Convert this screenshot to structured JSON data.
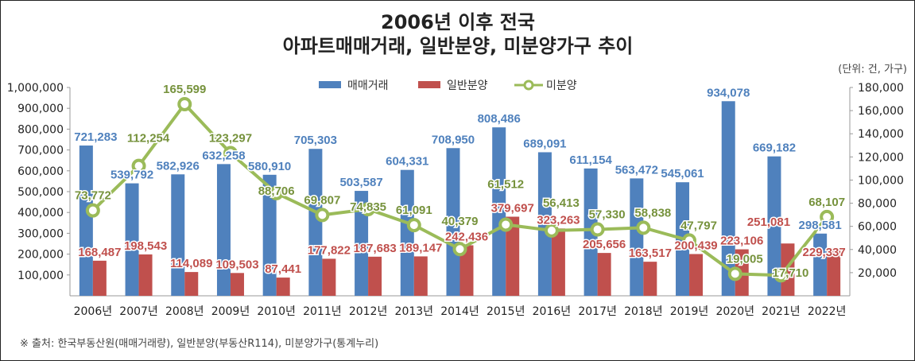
{
  "chart_data": {
    "type": "bar",
    "title": [
      "2006년 이후 전국",
      "아파트매매거래, 일반분양, 미분양가구 추이"
    ],
    "unit_note": "(단위: 건, 가구)",
    "categories": [
      "2006년",
      "2007년",
      "2008년",
      "2009년",
      "2010년",
      "2011년",
      "2012년",
      "2013년",
      "2014년",
      "2015년",
      "2016년",
      "2017년",
      "2018년",
      "2019년",
      "2020년",
      "2021년",
      "2022년"
    ],
    "left_axis": {
      "min": 0,
      "max": 1000000,
      "ticks": [
        100000,
        200000,
        300000,
        400000,
        500000,
        600000,
        700000,
        800000,
        900000,
        1000000
      ]
    },
    "right_axis": {
      "min": 0,
      "max": 180000,
      "ticks": [
        20000,
        40000,
        60000,
        80000,
        100000,
        120000,
        140000,
        160000,
        180000
      ]
    },
    "series": [
      {
        "name": "매매거래",
        "type": "bar",
        "axis": "left",
        "color": "#4f81bd",
        "label_color": "#4f81bd",
        "values": [
          721283,
          539792,
          582926,
          632258,
          580910,
          705303,
          503587,
          604331,
          708950,
          808486,
          689091,
          611154,
          563472,
          545061,
          934078,
          669182,
          298581
        ]
      },
      {
        "name": "일반분양",
        "type": "bar",
        "axis": "left",
        "color": "#c0504d",
        "label_color": "#c0504d",
        "values": [
          168487,
          198543,
          114089,
          109503,
          87441,
          177822,
          187683,
          189147,
          242436,
          379697,
          323263,
          205656,
          163517,
          200439,
          223106,
          251081,
          229337
        ]
      },
      {
        "name": "미분양",
        "type": "line",
        "axis": "right",
        "color": "#9bbb59",
        "label_color": "#76923c",
        "values": [
          73772,
          112254,
          165599,
          123297,
          88706,
          69807,
          74835,
          61091,
          40379,
          61512,
          56413,
          57330,
          58838,
          47797,
          19005,
          17710,
          68107
        ]
      }
    ],
    "legend": "top-center",
    "grid": false
  },
  "source": "※ 출처: 한국부동산원(매매거래량), 일반분양(부동산R114), 미분양가구(통계누리)"
}
